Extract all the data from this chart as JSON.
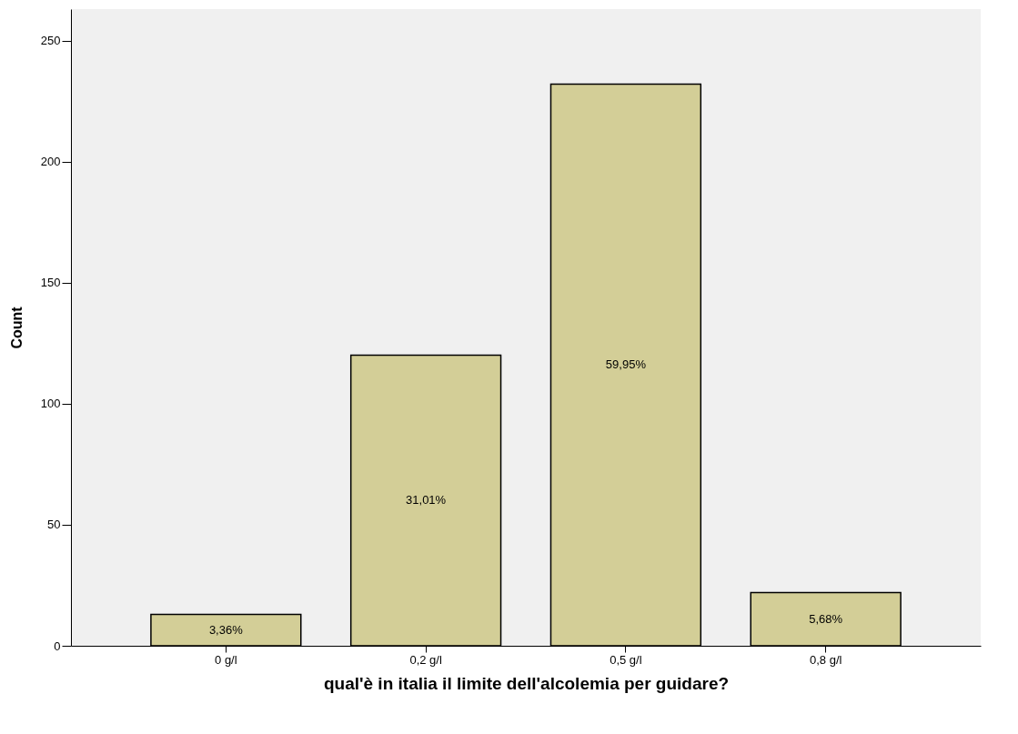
{
  "chart_data": {
    "type": "bar",
    "xlabel": "qual'è in italia il limite dell'alcolemia per guidare?",
    "ylabel": "Count",
    "categories": [
      "0 g/l",
      "0,2 g/l",
      "0,5 g/l",
      "0,8 g/l"
    ],
    "values": [
      13,
      120,
      232,
      22
    ],
    "annotations": [
      "3,36%",
      "31,01%",
      "59,95%",
      "5,68%"
    ],
    "color": "#d3ce97",
    "ylim": [
      0,
      263
    ],
    "yticks": [
      0,
      50,
      100,
      150,
      200,
      250
    ],
    "grid": false
  }
}
